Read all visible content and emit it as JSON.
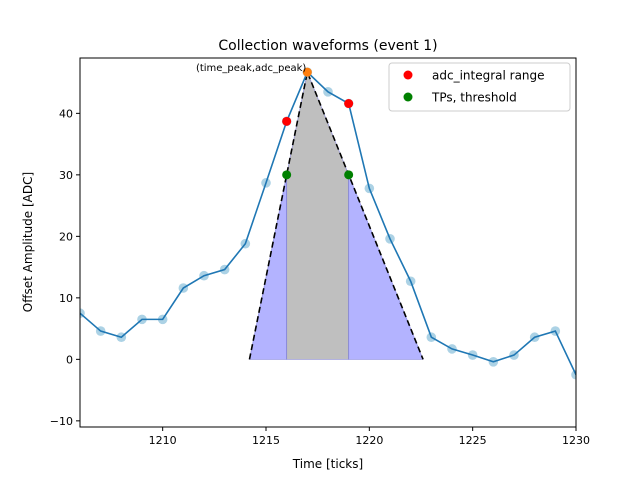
{
  "chart_data": {
    "type": "line",
    "title": "Collection waveforms (event 1)",
    "xlabel": "Time [ticks]",
    "ylabel": "Offset Amplitude [ADC]",
    "xlim": [
      1206,
      1230
    ],
    "ylim": [
      -11,
      49
    ],
    "xticks": [
      1210,
      1215,
      1220,
      1225,
      1230
    ],
    "yticks": [
      -10,
      0,
      10,
      20,
      30,
      40
    ],
    "grid": false,
    "legend_position": "top-right",
    "series": [
      {
        "style": "line-with-markers",
        "x": [
          1206,
          1207,
          1208,
          1209,
          1210,
          1211,
          1212,
          1213,
          1214,
          1215,
          1216,
          1217,
          1218,
          1219,
          1220,
          1221,
          1222,
          1223,
          1224,
          1225,
          1226,
          1227,
          1228,
          1229,
          1230
        ],
        "y": [
          7.5,
          4.6,
          3.6,
          6.5,
          6.5,
          11.6,
          13.6,
          14.6,
          18.8,
          28.7,
          38.7,
          46.7,
          43.5,
          41.6,
          27.8,
          19.6,
          12.7,
          3.6,
          1.7,
          0.7,
          -0.4,
          0.7,
          3.6,
          4.6,
          -2.5
        ],
        "line_color": "#1f77b4",
        "marker_color": "#9ecae1"
      }
    ],
    "triangle": {
      "points": [
        [
          1214.2,
          0
        ],
        [
          1217,
          46.7
        ],
        [
          1222.6,
          0
        ]
      ],
      "style": "dashed",
      "color": "#000000"
    },
    "shaded_regions": [
      {
        "x0": 1214.2,
        "x1": 1216,
        "color": "#b3b3ff"
      },
      {
        "x0": 1216,
        "x1": 1219,
        "color": "#bfbfbf"
      },
      {
        "x0": 1219,
        "x1": 1222.6,
        "color": "#b3b3ff"
      }
    ],
    "points": [
      {
        "label": "adc_integral range",
        "x": [
          1216,
          1219
        ],
        "y": [
          38.7,
          41.6
        ],
        "color": "#ff0000"
      },
      {
        "label": "TPs, threshold",
        "x": [
          1216,
          1219
        ],
        "y": [
          30,
          30
        ],
        "color": "#008000"
      },
      {
        "label": "",
        "x": [
          1217
        ],
        "y": [
          46.7
        ],
        "color": "#ff7f0e"
      }
    ],
    "annotation": {
      "text": "(time_peak,adc_peak)",
      "x": 1217,
      "y": 46.7
    },
    "legend": [
      "adc_integral range",
      "TPs, threshold"
    ]
  }
}
